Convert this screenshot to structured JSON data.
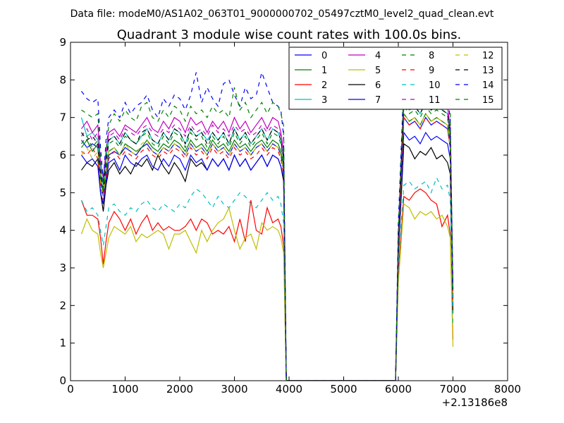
{
  "header": {
    "data_file": "Data file: modeM0/AS1A02_063T01_9000000702_05497cztM0_level2_quad_clean.evt"
  },
  "chart_data": {
    "type": "line",
    "title": "Quadrant 3 module wise count rates with 100.0s bins.",
    "xlabel": "",
    "ylabel": "",
    "x_offset_label": "+2.13186e8",
    "xlim": [
      0,
      8000
    ],
    "ylim": [
      0,
      9
    ],
    "xticks": [
      0,
      1000,
      2000,
      3000,
      4000,
      5000,
      6000,
      7000,
      8000
    ],
    "yticks": [
      0,
      1,
      2,
      3,
      4,
      5,
      6,
      7,
      8,
      9
    ],
    "grid": false,
    "legend_position": "top-right",
    "x": [
      200,
      300,
      400,
      500,
      550,
      600,
      650,
      700,
      800,
      900,
      1000,
      1100,
      1200,
      1300,
      1400,
      1500,
      1600,
      1700,
      1800,
      1900,
      2000,
      2100,
      2200,
      2300,
      2400,
      2500,
      2600,
      2700,
      2800,
      2900,
      3000,
      3100,
      3200,
      3300,
      3400,
      3500,
      3600,
      3700,
      3800,
      3850,
      3900,
      3950,
      4000,
      5900,
      5950,
      6000,
      6100,
      6200,
      6300,
      6400,
      6500,
      6600,
      6700,
      6800,
      6900,
      6950,
      7000
    ],
    "series": [
      {
        "name": "0",
        "color": "#0000ff",
        "dash": "solid",
        "values": [
          6.4,
          6.2,
          6.3,
          6.2,
          5.3,
          4.9,
          5.5,
          6.0,
          6.1,
          6.0,
          6.2,
          6.1,
          6.0,
          6.2,
          6.3,
          6.1,
          6.0,
          6.2,
          6.1,
          6.3,
          6.2,
          6.0,
          6.3,
          6.1,
          6.2,
          6.0,
          6.3,
          6.1,
          6.2,
          6.0,
          6.3,
          6.1,
          6.2,
          6.0,
          6.2,
          6.3,
          6.1,
          6.3,
          6.2,
          6.0,
          5.6,
          0,
          0,
          0,
          0,
          3.5,
          7.0,
          6.8,
          6.9,
          6.7,
          7.0,
          6.8,
          6.9,
          6.8,
          6.7,
          6.2,
          2.1
        ]
      },
      {
        "name": "1",
        "color": "#008000",
        "dash": "solid",
        "values": [
          6.2,
          6.4,
          6.1,
          6.3,
          5.4,
          5.0,
          5.6,
          6.1,
          6.2,
          6.0,
          6.3,
          6.2,
          6.1,
          6.2,
          6.4,
          6.2,
          6.1,
          6.3,
          6.2,
          6.4,
          6.3,
          6.1,
          6.4,
          6.2,
          6.3,
          6.1,
          6.4,
          6.2,
          6.3,
          6.1,
          6.4,
          6.2,
          6.3,
          6.1,
          6.3,
          6.4,
          6.2,
          6.4,
          6.3,
          6.1,
          5.7,
          0,
          0,
          0,
          0,
          3.6,
          7.1,
          6.9,
          7.0,
          6.8,
          7.1,
          6.9,
          7.0,
          6.9,
          6.8,
          6.3,
          2.2
        ]
      },
      {
        "name": "2",
        "color": "#ff0000",
        "dash": "solid",
        "values": [
          4.8,
          4.4,
          4.4,
          4.3,
          3.8,
          3.1,
          3.7,
          4.2,
          4.5,
          4.3,
          4.0,
          4.3,
          3.9,
          4.2,
          4.4,
          4.0,
          4.2,
          4.0,
          4.1,
          4.0,
          4.0,
          4.1,
          4.3,
          4.0,
          4.3,
          4.2,
          3.9,
          4.0,
          3.9,
          4.1,
          3.7,
          4.3,
          3.7,
          4.8,
          4.0,
          3.9,
          4.6,
          4.2,
          4.3,
          4.1,
          3.6,
          0,
          0,
          0,
          0,
          2.9,
          4.9,
          4.8,
          5.0,
          5.1,
          5.0,
          4.8,
          4.7,
          4.1,
          4.4,
          3.9,
          1.1
        ]
      },
      {
        "name": "3",
        "color": "#00bfbf",
        "dash": "solid",
        "values": [
          7.0,
          6.5,
          6.6,
          6.4,
          5.6,
          5.2,
          5.9,
          6.4,
          6.5,
          6.3,
          6.6,
          6.4,
          6.3,
          6.5,
          6.7,
          6.4,
          6.3,
          6.6,
          6.4,
          6.7,
          6.6,
          6.3,
          6.7,
          6.5,
          6.6,
          6.4,
          6.6,
          6.4,
          6.6,
          6.3,
          6.7,
          6.4,
          6.6,
          6.3,
          6.5,
          6.7,
          6.4,
          6.7,
          6.6,
          6.4,
          5.9,
          0,
          0,
          0,
          0,
          3.8,
          7.4,
          7.2,
          7.3,
          7.1,
          7.4,
          7.2,
          7.3,
          7.2,
          7.1,
          6.5,
          2.3
        ]
      },
      {
        "name": "4",
        "color": "#bf00bf",
        "dash": "solid",
        "values": [
          6.7,
          6.9,
          6.6,
          6.8,
          5.8,
          5.4,
          6.1,
          6.6,
          6.7,
          6.5,
          6.8,
          6.7,
          6.6,
          6.8,
          7.0,
          6.7,
          6.6,
          6.9,
          6.7,
          7.0,
          6.9,
          6.6,
          7.0,
          6.8,
          6.9,
          6.6,
          6.9,
          6.7,
          6.9,
          6.6,
          7.0,
          6.7,
          6.9,
          6.6,
          6.8,
          7.0,
          6.7,
          7.0,
          6.9,
          6.6,
          6.1,
          0,
          0,
          0,
          0,
          3.9,
          7.6,
          7.4,
          7.5,
          7.3,
          7.6,
          7.4,
          7.5,
          7.4,
          7.3,
          6.7,
          2.4
        ]
      },
      {
        "name": "5",
        "color": "#bfbf00",
        "dash": "solid",
        "values": [
          3.9,
          4.3,
          4.0,
          3.9,
          3.4,
          3.0,
          3.4,
          3.8,
          4.1,
          4.0,
          3.9,
          4.1,
          3.7,
          3.9,
          3.8,
          3.9,
          4.0,
          3.9,
          3.5,
          3.9,
          3.9,
          4.0,
          3.7,
          3.4,
          4.0,
          3.7,
          4.0,
          4.2,
          4.3,
          4.6,
          4.0,
          3.5,
          3.8,
          3.9,
          3.5,
          4.2,
          4.0,
          4.1,
          4.0,
          3.8,
          3.4,
          0,
          0,
          0,
          0,
          2.6,
          4.7,
          4.6,
          4.3,
          4.5,
          4.4,
          4.5,
          4.3,
          4.4,
          4.1,
          3.8,
          0.9
        ]
      },
      {
        "name": "6",
        "color": "#000000",
        "dash": "solid",
        "values": [
          5.6,
          5.8,
          5.7,
          5.9,
          5.0,
          4.5,
          5.2,
          5.6,
          5.8,
          5.5,
          5.7,
          5.5,
          5.8,
          5.7,
          5.9,
          5.6,
          6.0,
          5.7,
          5.5,
          5.8,
          5.6,
          5.3,
          5.9,
          5.7,
          5.8,
          5.6,
          5.9,
          5.7,
          5.9,
          5.6,
          6.0,
          5.7,
          5.9,
          5.6,
          5.8,
          6.0,
          5.7,
          6.0,
          5.9,
          5.7,
          5.3,
          0,
          0,
          0,
          0,
          3.3,
          6.3,
          6.2,
          5.9,
          6.1,
          6.0,
          6.2,
          5.9,
          6.0,
          5.8,
          5.5,
          1.8
        ]
      },
      {
        "name": "7",
        "color": "#0000ff",
        "dash": "solid",
        "values": [
          6.0,
          5.8,
          5.9,
          5.7,
          5.0,
          4.7,
          5.3,
          5.8,
          5.9,
          5.6,
          6.0,
          5.8,
          5.7,
          5.9,
          6.0,
          5.7,
          5.6,
          5.9,
          5.7,
          6.0,
          5.9,
          5.6,
          6.0,
          5.8,
          5.9,
          5.6,
          5.9,
          5.7,
          5.9,
          5.6,
          6.0,
          5.7,
          5.9,
          5.6,
          5.8,
          6.0,
          5.7,
          6.0,
          5.9,
          5.7,
          5.4,
          0,
          0,
          0,
          0,
          3.4,
          6.6,
          6.4,
          6.5,
          6.3,
          6.6,
          6.4,
          6.5,
          6.4,
          6.3,
          5.9,
          2.0
        ]
      },
      {
        "name": "8",
        "color": "#008000",
        "dash": "dashed",
        "values": [
          6.3,
          6.5,
          6.2,
          6.4,
          5.5,
          5.1,
          5.8,
          6.3,
          6.4,
          6.2,
          6.5,
          6.4,
          6.3,
          6.5,
          6.6,
          6.3,
          6.2,
          6.5,
          6.3,
          6.6,
          6.5,
          6.2,
          6.6,
          6.4,
          6.5,
          6.2,
          6.5,
          6.3,
          6.5,
          6.2,
          6.6,
          6.3,
          6.5,
          6.2,
          6.4,
          6.6,
          6.3,
          6.6,
          6.5,
          6.3,
          5.8,
          0,
          0,
          0,
          0,
          3.7,
          7.3,
          7.1,
          7.2,
          7.0,
          7.3,
          7.1,
          7.2,
          7.1,
          7.0,
          6.4,
          2.2
        ]
      },
      {
        "name": "9",
        "color": "#ff0000",
        "dash": "dashed",
        "values": [
          6.1,
          6.0,
          6.2,
          5.9,
          5.2,
          4.8,
          5.4,
          5.9,
          6.1,
          5.9,
          6.1,
          6.0,
          5.9,
          6.1,
          6.2,
          6.0,
          5.9,
          6.1,
          6.0,
          6.2,
          6.1,
          5.9,
          6.2,
          6.0,
          6.1,
          5.9,
          6.2,
          6.0,
          6.1,
          5.9,
          6.2,
          6.0,
          6.1,
          5.9,
          6.0,
          6.2,
          6.0,
          6.2,
          6.1,
          5.9,
          5.5,
          0,
          0,
          0,
          0,
          3.5,
          7.0,
          6.8,
          6.9,
          6.7,
          7.0,
          6.8,
          6.9,
          6.8,
          6.7,
          6.2,
          2.1
        ]
      },
      {
        "name": "10",
        "color": "#00bfbf",
        "dash": "dashed",
        "values": [
          4.8,
          4.5,
          4.6,
          4.4,
          4.0,
          3.6,
          4.1,
          4.6,
          4.7,
          4.5,
          4.4,
          4.6,
          4.5,
          4.7,
          4.8,
          4.6,
          4.5,
          4.7,
          4.6,
          4.5,
          4.7,
          4.6,
          4.9,
          5.1,
          5.0,
          4.8,
          4.6,
          4.9,
          4.7,
          4.6,
          4.8,
          5.0,
          4.9,
          4.7,
          4.6,
          4.8,
          5.0,
          4.8,
          4.9,
          4.7,
          4.2,
          0,
          0,
          0,
          0,
          3.0,
          5.2,
          5.3,
          5.1,
          5.2,
          5.3,
          5.0,
          5.4,
          5.1,
          5.2,
          4.8,
          1.5
        ]
      },
      {
        "name": "11",
        "color": "#bf00bf",
        "dash": "dashed",
        "values": [
          6.5,
          6.7,
          6.4,
          6.6,
          5.6,
          5.2,
          6.0,
          6.5,
          6.6,
          6.4,
          6.7,
          6.6,
          6.5,
          6.7,
          6.8,
          6.6,
          6.5,
          6.7,
          6.6,
          6.8,
          6.7,
          6.5,
          6.8,
          6.6,
          6.7,
          6.5,
          6.8,
          6.6,
          6.7,
          6.5,
          6.8,
          6.6,
          6.7,
          6.5,
          6.6,
          6.8,
          6.6,
          6.8,
          6.7,
          6.5,
          6.0,
          0,
          0,
          0,
          0,
          3.8,
          7.5,
          7.3,
          7.4,
          7.2,
          7.5,
          7.3,
          7.4,
          7.3,
          7.2,
          6.6,
          2.3
        ]
      },
      {
        "name": "12",
        "color": "#bfbf00",
        "dash": "dashed",
        "values": [
          6.0,
          6.2,
          5.9,
          6.1,
          5.3,
          4.9,
          5.6,
          6.1,
          6.2,
          6.0,
          6.3,
          6.1,
          6.0,
          6.3,
          6.4,
          6.1,
          6.0,
          6.2,
          6.1,
          6.3,
          6.2,
          6.0,
          6.3,
          6.1,
          6.2,
          6.0,
          6.3,
          6.1,
          6.2,
          6.0,
          6.3,
          6.1,
          6.2,
          6.0,
          6.2,
          6.3,
          6.1,
          6.3,
          6.2,
          6.0,
          5.6,
          0,
          0,
          0,
          0,
          3.5,
          7.1,
          6.9,
          7.0,
          6.8,
          7.1,
          6.9,
          7.0,
          6.9,
          6.8,
          6.2,
          2.1
        ]
      },
      {
        "name": "13",
        "color": "#000000",
        "dash": "dashed",
        "values": [
          6.6,
          6.4,
          6.5,
          6.3,
          5.5,
          5.1,
          5.8,
          6.4,
          6.5,
          6.3,
          6.6,
          6.4,
          6.3,
          6.6,
          6.7,
          6.4,
          6.3,
          6.6,
          6.4,
          6.7,
          6.6,
          6.3,
          6.7,
          6.5,
          6.6,
          6.3,
          6.6,
          6.4,
          6.6,
          6.3,
          6.7,
          6.4,
          6.6,
          6.3,
          6.5,
          6.7,
          6.4,
          6.7,
          6.6,
          6.4,
          5.9,
          0,
          0,
          0,
          0,
          3.7,
          7.4,
          7.2,
          7.3,
          7.1,
          7.4,
          7.2,
          7.3,
          7.2,
          7.1,
          6.5,
          2.3
        ]
      },
      {
        "name": "14",
        "color": "#0000ff",
        "dash": "dashed",
        "values": [
          7.7,
          7.5,
          7.4,
          7.5,
          6.2,
          5.3,
          6.4,
          7.0,
          7.2,
          7.0,
          7.4,
          7.1,
          7.3,
          7.4,
          7.6,
          7.2,
          7.0,
          7.5,
          7.3,
          7.6,
          7.5,
          7.2,
          7.6,
          8.2,
          7.4,
          7.8,
          7.5,
          7.3,
          7.9,
          8.0,
          7.6,
          7.3,
          7.8,
          7.5,
          7.6,
          8.2,
          7.8,
          7.4,
          7.3,
          7.2,
          6.5,
          0,
          0,
          0,
          0,
          4.2,
          8.0,
          7.9,
          7.8,
          7.7,
          7.8,
          7.9,
          7.6,
          7.7,
          7.5,
          7.0,
          2.5
        ]
      },
      {
        "name": "15",
        "color": "#008000",
        "dash": "dashed",
        "values": [
          7.2,
          7.1,
          7.0,
          7.1,
          5.9,
          5.0,
          6.1,
          6.8,
          7.1,
          6.9,
          7.2,
          7.0,
          6.9,
          7.3,
          7.4,
          7.0,
          6.9,
          7.2,
          7.0,
          7.3,
          7.2,
          6.9,
          7.3,
          7.1,
          7.2,
          7.0,
          7.3,
          7.1,
          7.2,
          7.0,
          7.8,
          7.2,
          7.4,
          7.0,
          7.2,
          7.4,
          7.1,
          7.4,
          7.3,
          7.1,
          6.8,
          0,
          0,
          0,
          0,
          4.0,
          7.8,
          7.6,
          7.7,
          7.5,
          7.8,
          7.6,
          7.7,
          7.6,
          8.1,
          7.2,
          2.4
        ]
      }
    ]
  }
}
